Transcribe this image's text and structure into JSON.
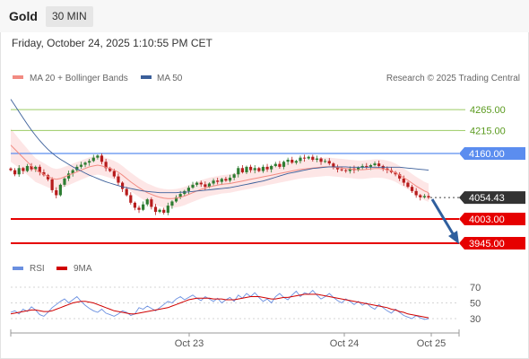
{
  "header": {
    "symbol": "Gold",
    "timeframe": "30 MIN"
  },
  "timestamp": "Friday, October 24, 2025 1:10:55 PM CET",
  "legend": {
    "ma20": "MA 20 + Bollinger Bands",
    "ma50": "MA 50",
    "credit": "Research © 2025 Trading Central",
    "rsi": "RSI",
    "ma9": "9MA"
  },
  "colors": {
    "up": "#2e7d32",
    "down": "#b71c1c",
    "ma20": "#f28b82",
    "band_fill": "#fde2e2",
    "ma50": "#3b5f9a",
    "resistance": "#9ccc65",
    "pivot": "#5b8def",
    "support": "#e60000",
    "current": "#333333",
    "rsi": "#6a8fe0",
    "rsi_ma": "#d00000",
    "arrow": "#2f5f9e"
  },
  "chart_data": [
    {
      "type": "candlestick",
      "title": "Gold 30 MIN",
      "x_tick_labels": [
        "Oct 23",
        "Oct 24",
        "Oct 25"
      ],
      "ylim": [
        3920,
        4300
      ],
      "price_levels": [
        {
          "value": 4265.0,
          "label": "4265.00",
          "kind": "resistance"
        },
        {
          "value": 4215.0,
          "label": "4215.00",
          "kind": "resistance"
        },
        {
          "value": 4160.0,
          "label": "4160.00",
          "kind": "pivot"
        },
        {
          "value": 4054.43,
          "label": "4054.43",
          "kind": "current"
        },
        {
          "value": 4003.0,
          "label": "4003.00",
          "kind": "support"
        },
        {
          "value": 3945.0,
          "label": "3945.00",
          "kind": "support"
        }
      ],
      "close": [
        4120,
        4110,
        4125,
        4118,
        4130,
        4122,
        4128,
        4115,
        4108,
        4098,
        4072,
        4060,
        4085,
        4100,
        4112,
        4120,
        4128,
        4133,
        4138,
        4142,
        4150,
        4155,
        4140,
        4125,
        4118,
        4105,
        4090,
        4075,
        4060,
        4042,
        4030,
        4025,
        4038,
        4050,
        4032,
        4020,
        4025,
        4018,
        4035,
        4045,
        4055,
        4063,
        4070,
        4078,
        4085,
        4090,
        4086,
        4080,
        4088,
        4095,
        4092,
        4099,
        4095,
        4102,
        4110,
        4125,
        4115,
        4128,
        4120,
        4125,
        4118,
        4128,
        4122,
        4130,
        4135,
        4128,
        4140,
        4145,
        4138,
        4142,
        4150,
        4148,
        4152,
        4145,
        4148,
        4140,
        4142,
        4136,
        4128,
        4122,
        4120,
        4118,
        4124,
        4120,
        4126,
        4130,
        4128,
        4132,
        4136,
        4130,
        4124,
        4120,
        4115,
        4110,
        4100,
        4090,
        4080,
        4070,
        4060,
        4055,
        4058,
        4054.43
      ],
      "series": [
        {
          "name": "MA 20 + Bollinger Bands",
          "values": [
            4180,
            4170,
            4160,
            4150,
            4140,
            4130,
            4120,
            4115,
            4110,
            4105,
            4100,
            4098,
            4100,
            4104,
            4108,
            4112,
            4116,
            4120,
            4124,
            4128,
            4130,
            4132,
            4130,
            4127,
            4124,
            4120,
            4115,
            4108,
            4100,
            4092,
            4085,
            4078,
            4072,
            4066,
            4062,
            4058,
            4055,
            4053,
            4052,
            4052,
            4053,
            4055,
            4058,
            4062,
            4066,
            4070,
            4074,
            4077,
            4080,
            4082,
            4084,
            4086,
            4087,
            4088,
            4090,
            4092,
            4094,
            4096,
            4098,
            4100,
            4102,
            4104,
            4106,
            4108,
            4110,
            4112,
            4114,
            4116,
            4118,
            4120,
            4122,
            4123,
            4124,
            4125,
            4126,
            4127,
            4128,
            4128,
            4127,
            4126,
            4125,
            4124,
            4123,
            4122,
            4121,
            4121,
            4122,
            4123,
            4124,
            4124,
            4123,
            4121,
            4118,
            4114,
            4108,
            4102,
            4096,
            4089,
            4082,
            4076,
            4070,
            4066
          ]
        },
        {
          "name": "MA 50",
          "values": [
            4290,
            4275,
            4260,
            4245,
            4230,
            4216,
            4203,
            4191,
            4180,
            4170,
            4161,
            4153,
            4146,
            4140,
            4134,
            4128,
            4123,
            4118,
            4113,
            4108,
            4104,
            4100,
            4096,
            4092,
            4089,
            4086,
            4083,
            4080,
            4078,
            4076,
            4074,
            4072,
            4070,
            4069,
            4068,
            4067,
            4066,
            4066,
            4066,
            4066,
            4066,
            4067,
            4067,
            4068,
            4069,
            4070,
            4071,
            4072,
            4073,
            4074,
            4075,
            4076,
            4077,
            4078,
            4080,
            4082,
            4084,
            4086,
            4088,
            4090,
            4092,
            4094,
            4097,
            4100,
            4103,
            4106,
            4109,
            4112,
            4114,
            4116,
            4118,
            4120,
            4122,
            4124,
            4125,
            4126,
            4127,
            4128,
            4128,
            4128,
            4128,
            4128,
            4127,
            4127,
            4127,
            4127,
            4127,
            4127,
            4127,
            4127,
            4127,
            4127,
            4127,
            4127,
            4127,
            4126,
            4125,
            4124,
            4123,
            4122,
            4121,
            4120
          ]
        }
      ]
    },
    {
      "type": "line",
      "title": "RSI",
      "y_tick_labels": [
        "70",
        "50",
        "30"
      ],
      "ylim": [
        15,
        80
      ],
      "series": [
        {
          "name": "RSI",
          "values": [
            38,
            40,
            36,
            42,
            39,
            45,
            41,
            35,
            33,
            38,
            44,
            48,
            52,
            55,
            50,
            54,
            58,
            52,
            47,
            43,
            40,
            38,
            42,
            37,
            35,
            33,
            36,
            40,
            38,
            34,
            36,
            44,
            42,
            46,
            43,
            40,
            44,
            48,
            52,
            50,
            55,
            58,
            54,
            57,
            60,
            56,
            53,
            58,
            55,
            52,
            56,
            50,
            54,
            57,
            52,
            60,
            56,
            62,
            58,
            63,
            57,
            52,
            55,
            50,
            58,
            62,
            57,
            54,
            60,
            65,
            58,
            63,
            61,
            66,
            60,
            55,
            58,
            62,
            57,
            53,
            50,
            55,
            52,
            48,
            52,
            47,
            50,
            45,
            42,
            48,
            44,
            40,
            37,
            42,
            38,
            34,
            32,
            30,
            34,
            31,
            29,
            30
          ]
        },
        {
          "name": "9MA",
          "values": [
            36,
            37,
            38,
            39,
            40,
            41,
            41,
            40,
            39,
            39,
            40,
            42,
            44,
            46,
            48,
            50,
            51,
            52,
            52,
            51,
            50,
            48,
            46,
            44,
            42,
            40,
            39,
            38,
            37,
            36,
            36,
            37,
            38,
            39,
            40,
            41,
            42,
            43,
            44,
            46,
            48,
            50,
            52,
            54,
            55,
            56,
            56,
            56,
            56,
            55,
            55,
            55,
            54,
            54,
            54,
            55,
            56,
            57,
            58,
            58,
            58,
            57,
            56,
            55,
            55,
            56,
            57,
            57,
            58,
            59,
            60,
            61,
            61,
            61,
            61,
            60,
            59,
            58,
            57,
            56,
            55,
            54,
            53,
            52,
            51,
            50,
            49,
            48,
            47,
            46,
            45,
            44,
            42,
            41,
            39,
            38,
            36,
            35,
            34,
            33,
            32,
            31
          ]
        }
      ]
    }
  ]
}
